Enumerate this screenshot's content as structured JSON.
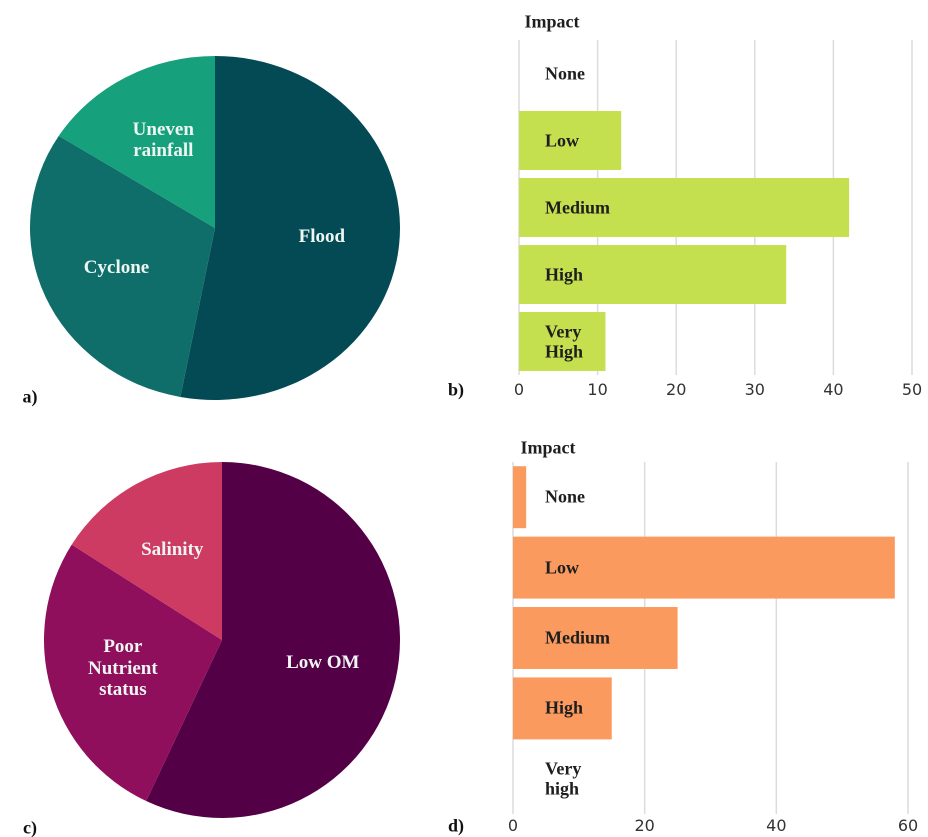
{
  "chart_data": [
    {
      "type": "pie",
      "label": "a)",
      "categories": [
        "Flood",
        "Cyclone",
        "Uneven\nrainfall"
      ],
      "values": [
        53,
        31,
        16
      ],
      "colors": [
        "#044a55",
        "#0f6e6a",
        "#16a07c"
      ]
    },
    {
      "type": "bar",
      "label": "b)",
      "title": "Impact",
      "categories": [
        "None",
        "Low",
        "Medium",
        "High",
        "Very\nHigh"
      ],
      "values": [
        0,
        13,
        42,
        34,
        11
      ],
      "color": "#c5e04f",
      "xlim": [
        0,
        50
      ],
      "xticks": [
        0,
        10,
        20,
        30,
        40,
        50
      ],
      "grid": true
    },
    {
      "type": "pie",
      "label": "c)",
      "categories": [
        "Low OM",
        "Poor\nNutrient\nstatus",
        "Salinity"
      ],
      "values": [
        57,
        27,
        16
      ],
      "colors": [
        "#540047",
        "#8f0f5c",
        "#cd3a62"
      ]
    },
    {
      "type": "bar",
      "label": "d)",
      "title": "Impact",
      "categories": [
        "None",
        "Low",
        "Medium",
        "High",
        "Very\nhigh"
      ],
      "values": [
        2,
        58,
        25,
        15,
        0
      ],
      "color": "#fb9a5e",
      "xlim": [
        0,
        60
      ],
      "xticks": [
        0,
        20,
        40,
        60
      ],
      "grid": true
    }
  ]
}
